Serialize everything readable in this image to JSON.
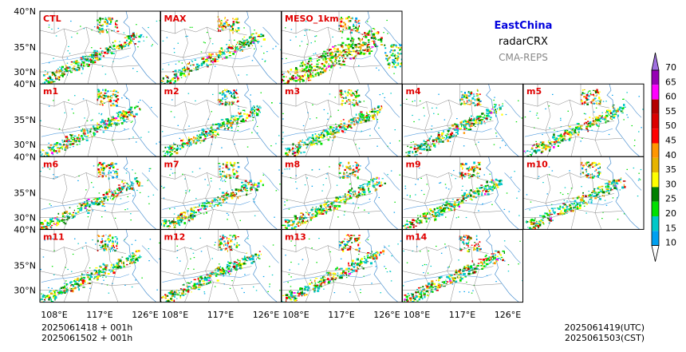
{
  "header": {
    "region": "EastChina",
    "variable": "radarCRX",
    "system": "CMA-REPS"
  },
  "panels": [
    {
      "label": "CTL",
      "row": 0,
      "col": 0
    },
    {
      "label": "MAX",
      "row": 0,
      "col": 1
    },
    {
      "label": "MESO_1km",
      "row": 0,
      "col": 2
    },
    {
      "label": "m1",
      "row": 1,
      "col": 0
    },
    {
      "label": "m2",
      "row": 1,
      "col": 1
    },
    {
      "label": "m3",
      "row": 1,
      "col": 2
    },
    {
      "label": "m4",
      "row": 1,
      "col": 3
    },
    {
      "label": "m5",
      "row": 1,
      "col": 4
    },
    {
      "label": "m6",
      "row": 2,
      "col": 0
    },
    {
      "label": "m7",
      "row": 2,
      "col": 1
    },
    {
      "label": "m8",
      "row": 2,
      "col": 2
    },
    {
      "label": "m9",
      "row": 2,
      "col": 3
    },
    {
      "label": "m10",
      "row": 2,
      "col": 4
    },
    {
      "label": "m11",
      "row": 3,
      "col": 0
    },
    {
      "label": "m12",
      "row": 3,
      "col": 1
    },
    {
      "label": "m13",
      "row": 3,
      "col": 2
    },
    {
      "label": "m14",
      "row": 3,
      "col": 3
    }
  ],
  "lat_ticks": [
    "40°N",
    "35°N",
    "30°N"
  ],
  "lon_ticks": [
    "108°E",
    "117°E",
    "126°E"
  ],
  "colorbar": {
    "levels": [
      "10",
      "15",
      "20",
      "25",
      "30",
      "35",
      "40",
      "45",
      "50",
      "55",
      "60",
      "65",
      "70"
    ],
    "colors": [
      "#00a0f0",
      "#00c8c8",
      "#00e000",
      "#008000",
      "#ffff00",
      "#e6b400",
      "#ff9600",
      "#ff0000",
      "#dc0000",
      "#b40000",
      "#ff00ff",
      "#9600b4",
      "#a070e0"
    ]
  },
  "footer": {
    "init_utc_line": "2025061418  +  001h",
    "init_cst_line": "2025061502  +  001h",
    "valid_utc": "2025061419(UTC)",
    "valid_cst": "2025061503(CST)"
  }
}
